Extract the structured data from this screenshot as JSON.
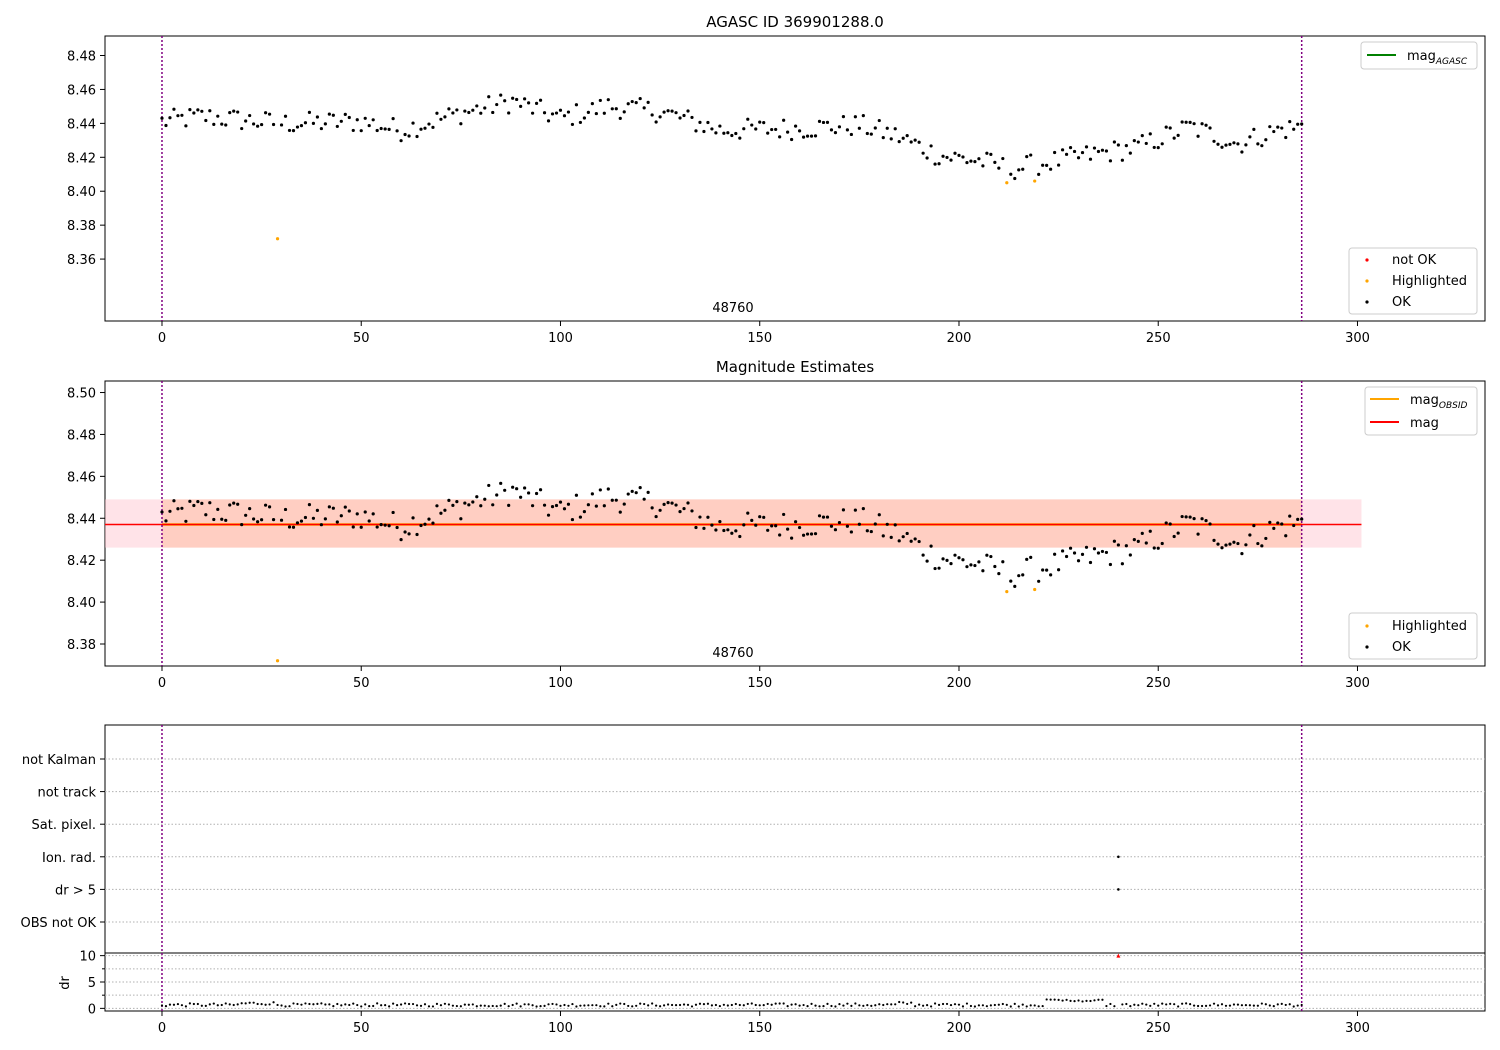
{
  "chart_data": [
    {
      "type": "scatter",
      "title": "AGASC ID 369901288.0",
      "xlim": [
        -14.3,
        332
      ],
      "ylim": [
        8.3235,
        8.4915
      ],
      "xticks": [
        0,
        50,
        100,
        150,
        200,
        250,
        300
      ],
      "yticks": [
        8.36,
        8.38,
        8.4,
        8.42,
        8.44,
        8.46,
        8.48
      ],
      "grid": false,
      "annotation": "48760",
      "vlines": [
        0,
        286
      ],
      "legend_top": {
        "placement": "top-right",
        "entries": [
          "mag_AGASC"
        ]
      },
      "legend_bottom": {
        "placement": "bottom-right",
        "entries": [
          "not OK",
          "Highlighted",
          "OK"
        ]
      },
      "highlighted_points": [
        [
          29,
          8.372
        ],
        [
          212,
          8.405
        ],
        [
          219,
          8.406
        ]
      ]
    },
    {
      "type": "scatter",
      "title": "Magnitude Estimates",
      "xlim": [
        -14.3,
        332
      ],
      "ylim": [
        8.3695,
        8.5055
      ],
      "xticks": [
        0,
        50,
        100,
        150,
        200,
        250,
        300
      ],
      "yticks": [
        8.38,
        8.4,
        8.42,
        8.44,
        8.46,
        8.48,
        8.5
      ],
      "grid": false,
      "annotation": "48760",
      "vlines": [
        0,
        286
      ],
      "mag_obsid": 8.437,
      "mag": 8.437,
      "mag_band": [
        8.426,
        8.449
      ],
      "mag_band_xrange": [
        -14.3,
        301
      ],
      "obsid_band_xrange": [
        0,
        286
      ],
      "legend_top": {
        "placement": "top-right",
        "entries": [
          "mag_OBSID",
          "mag"
        ]
      },
      "legend_bottom": {
        "placement": "bottom-right",
        "entries": [
          "Highlighted",
          "OK"
        ]
      },
      "highlighted_points": [
        [
          29,
          8.372
        ],
        [
          212,
          8.405
        ],
        [
          219,
          8.406
        ]
      ]
    },
    {
      "type": "scatter",
      "title": "",
      "xlim": [
        -14.3,
        332
      ],
      "flag_labels": [
        "not Kalman",
        "not track",
        "Sat. pixel.",
        "Ion. rad.",
        "dr > 5",
        "OBS not OK"
      ],
      "flag_points": [
        {
          "flag": "Ion. rad.",
          "x": 240
        },
        {
          "flag": "dr > 5",
          "x": 240
        }
      ],
      "grid": "dotted-horizontal",
      "vlines": [
        0,
        286
      ]
    },
    {
      "type": "scatter",
      "ylabel": "dr",
      "xlim": [
        -14.3,
        332
      ],
      "ylim": [
        -0.5,
        10.5
      ],
      "xticks": [
        0,
        50,
        100,
        150,
        200,
        250,
        300
      ],
      "yticks": [
        0,
        5,
        10
      ],
      "grid": "dotted-horizontal",
      "vlines": [
        0,
        286
      ],
      "clipped_points": [
        [
          240,
          10
        ]
      ]
    }
  ],
  "legend_labels": {
    "mag_agasc_base": "mag",
    "mag_agasc_sub": "AGASC",
    "mag_obsid_base": "mag",
    "mag_obsid_sub": "OBSID",
    "mag": "mag",
    "not_ok": "not OK",
    "highlighted": "Highlighted",
    "ok": "OK"
  },
  "colors": {
    "ok": "#000000",
    "highlighted": "#ffa500",
    "not_ok": "#ff0000",
    "mag_agasc": "#008000",
    "mag_obsid": "#ffa500",
    "mag": "#ff0000",
    "vline": "#800080",
    "mag_band": "#ffc0cb",
    "obsid_band": "#ffa57a"
  }
}
